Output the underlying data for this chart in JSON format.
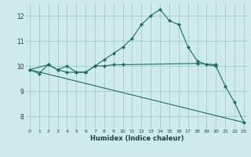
{
  "xlabel": "Humidex (Indice chaleur)",
  "background_color": "#ceeaea",
  "grid_color": "#aacece",
  "line_color": "#1a6e64",
  "xlim": [
    -0.5,
    23.5
  ],
  "ylim": [
    7.5,
    12.5
  ],
  "yticks": [
    8,
    9,
    10,
    11,
    12
  ],
  "xticks": [
    0,
    1,
    2,
    3,
    4,
    5,
    6,
    7,
    8,
    9,
    10,
    11,
    12,
    13,
    14,
    15,
    16,
    17,
    18,
    19,
    20,
    21,
    22,
    23
  ],
  "line1_x": [
    0,
    1,
    2,
    3,
    4,
    5,
    6,
    7,
    8,
    9,
    10,
    11,
    12,
    13,
    14,
    15,
    16,
    17,
    18,
    19,
    20,
    21,
    22,
    23
  ],
  "line1_y": [
    9.85,
    9.7,
    10.05,
    9.85,
    9.75,
    9.75,
    9.75,
    10.0,
    10.25,
    10.5,
    10.75,
    11.1,
    11.65,
    12.0,
    12.25,
    11.8,
    11.65,
    10.75,
    10.2,
    10.05,
    10.0,
    9.2,
    8.55,
    7.75
  ],
  "line2_x": [
    0,
    2,
    3,
    4,
    5,
    6,
    7,
    8,
    9,
    10,
    18,
    20
  ],
  "line2_y": [
    9.85,
    10.05,
    9.85,
    10.0,
    9.75,
    9.75,
    10.0,
    10.0,
    10.05,
    10.05,
    10.1,
    10.05
  ],
  "line3_x": [
    0,
    23
  ],
  "line3_y": [
    9.85,
    7.75
  ]
}
